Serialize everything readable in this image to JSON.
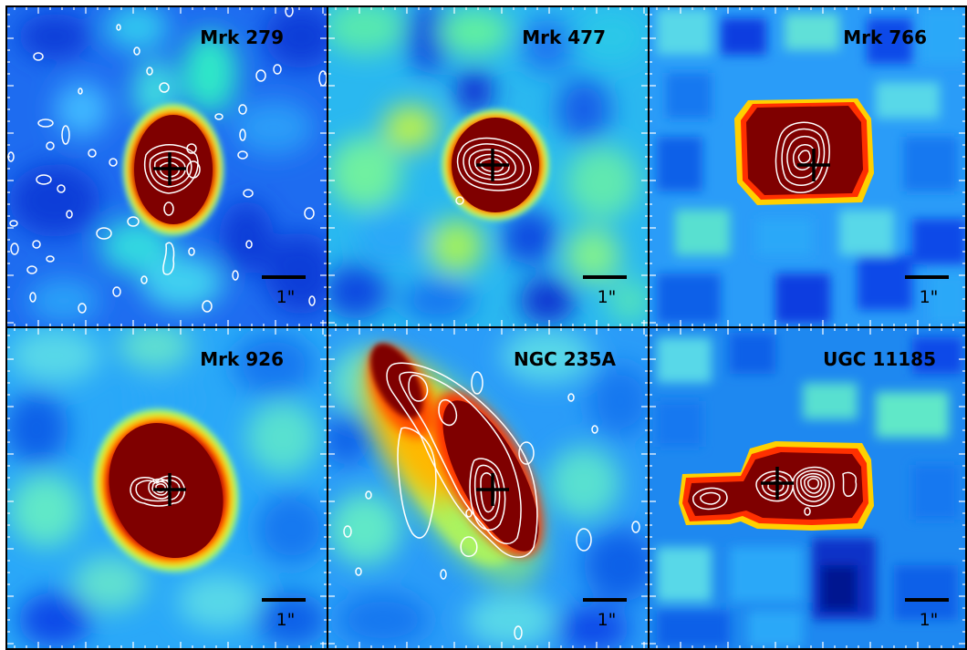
{
  "figure": {
    "panels": [
      {
        "id": "mrk279",
        "name": "Mrk 279",
        "scale_label": "1\""
      },
      {
        "id": "mrk477",
        "name": "Mrk 477",
        "scale_label": "1\""
      },
      {
        "id": "mrk766",
        "name": "Mrk 766",
        "scale_label": "1\""
      },
      {
        "id": "mrk926",
        "name": "Mrk 926",
        "scale_label": "1\""
      },
      {
        "id": "ngc235a",
        "name": "NGC 235A",
        "scale_label": "1\""
      },
      {
        "id": "ugc11185",
        "name": "UGC 11185",
        "scale_label": "1\""
      }
    ],
    "colors": {
      "background_colormap": "jet",
      "saturated_core": "#7f0000",
      "contours": "#ffffff",
      "nucleus_marker": "#000000",
      "scale_bar": "#000000",
      "panel_border": "#000000"
    },
    "icons": {
      "nucleus_marker": "plus-cross-icon",
      "scale_bar": "horizontal-bar-icon"
    }
  }
}
